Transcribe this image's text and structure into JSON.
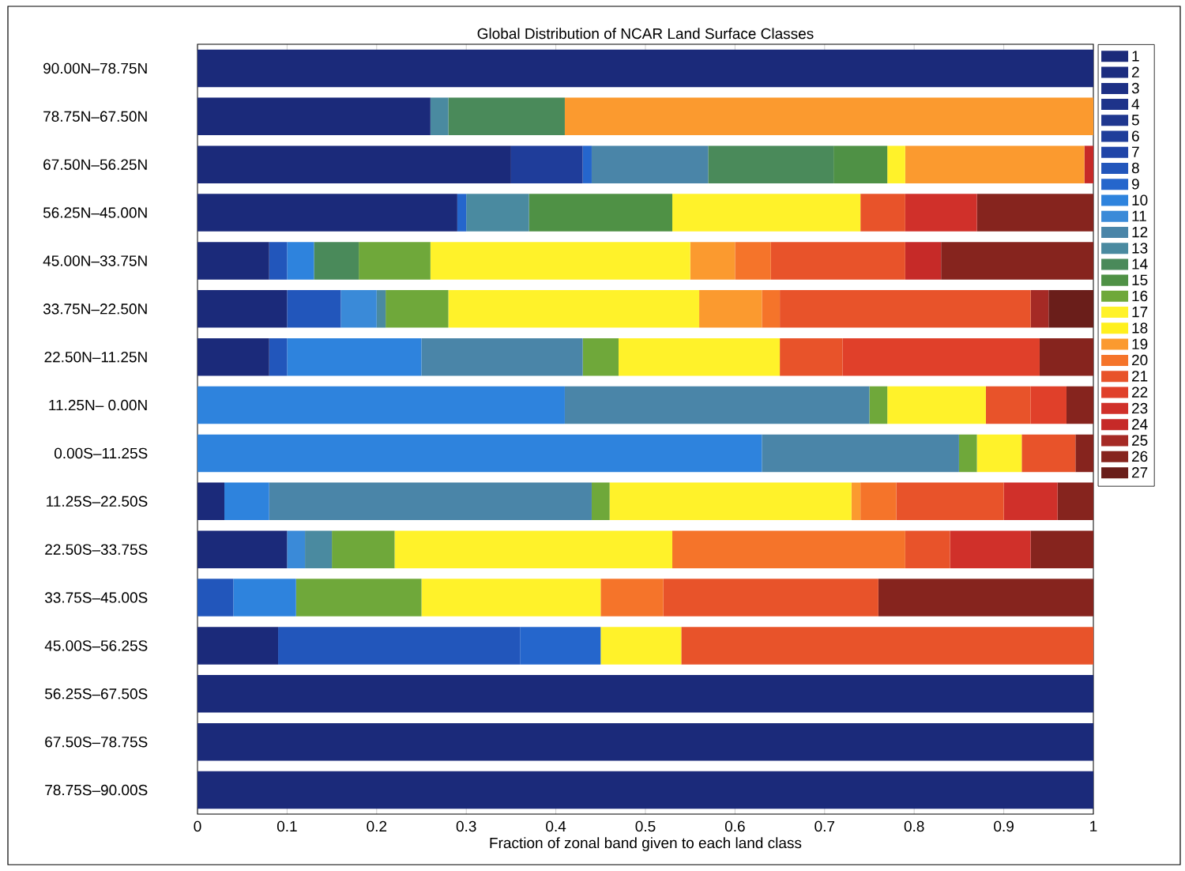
{
  "chart_data": {
    "type": "bar",
    "orientation": "horizontal",
    "stacked": true,
    "title": "Global Distribution of NCAR Land Surface Classes",
    "xlabel": "Fraction of zonal band given to each land class",
    "categories": [
      "90.00N–78.75N",
      "78.75N–67.50N",
      "67.50N–56.25N",
      "56.25N–45.00N",
      "45.00N–33.75N",
      "33.75N–22.50N",
      "22.50N–11.25N",
      "11.25N– 0.00N",
      "0.00S–11.25S",
      "11.25S–22.50S",
      "22.50S–33.75S",
      "33.75S–45.00S",
      "45.00S–56.25S",
      "56.25S–67.50S",
      "67.50S–78.75S",
      "78.75S–90.00S"
    ],
    "xlim": [
      0,
      1
    ],
    "xticks": [
      0,
      0.1,
      0.2,
      0.3,
      0.4,
      0.5,
      0.6,
      0.7,
      0.8,
      0.9,
      1
    ],
    "legend": "right",
    "grid": false,
    "series": [
      {
        "name": "1",
        "color": "#1b2a7a",
        "values": [
          1,
          0.26,
          0.35,
          0.29,
          0.08,
          0.1,
          0.08,
          null,
          null,
          0.03,
          0.1,
          null,
          0.09,
          1,
          1,
          1
        ]
      },
      {
        "name": "2",
        "color": "#1c2d80",
        "values": [
          null,
          null,
          null,
          null,
          null,
          null,
          null,
          null,
          null,
          null,
          null,
          null,
          null,
          null,
          null,
          null
        ]
      },
      {
        "name": "3",
        "color": "#1d3085",
        "values": [
          null,
          null,
          null,
          null,
          null,
          null,
          null,
          null,
          null,
          null,
          null,
          null,
          null,
          null,
          null,
          null
        ]
      },
      {
        "name": "4",
        "color": "#1e338a",
        "values": [
          null,
          null,
          null,
          null,
          null,
          null,
          null,
          null,
          null,
          null,
          null,
          null,
          null,
          null,
          null,
          null
        ]
      },
      {
        "name": "5",
        "color": "#1f378f",
        "values": [
          null,
          null,
          null,
          null,
          null,
          null,
          null,
          null,
          null,
          null,
          null,
          null,
          null,
          null,
          null,
          null
        ]
      },
      {
        "name": "6",
        "color": "#1f3d9a",
        "values": [
          null,
          null,
          0.08,
          null,
          null,
          null,
          null,
          null,
          null,
          null,
          null,
          null,
          null,
          null,
          null,
          null
        ]
      },
      {
        "name": "7",
        "color": "#2045a8",
        "values": [
          null,
          null,
          null,
          null,
          null,
          null,
          null,
          null,
          null,
          null,
          null,
          null,
          null,
          null,
          null,
          null
        ]
      },
      {
        "name": "8",
        "color": "#2256bb",
        "values": [
          null,
          null,
          null,
          null,
          0.02,
          0.06,
          0.02,
          null,
          null,
          null,
          null,
          0.04,
          0.27,
          null,
          null,
          null
        ]
      },
      {
        "name": "9",
        "color": "#2566cc",
        "values": [
          null,
          null,
          0.01,
          0.01,
          null,
          null,
          null,
          null,
          null,
          null,
          null,
          null,
          0.09,
          null,
          null,
          null
        ]
      },
      {
        "name": "10",
        "color": "#2e83dd",
        "values": [
          null,
          null,
          null,
          null,
          0.03,
          null,
          0.15,
          0.41,
          0.63,
          0.05,
          null,
          0.07,
          null,
          null,
          null,
          null
        ]
      },
      {
        "name": "11",
        "color": "#3a8ad8",
        "values": [
          null,
          null,
          null,
          null,
          null,
          0.04,
          null,
          null,
          null,
          null,
          0.02,
          null,
          null,
          null,
          null,
          null
        ]
      },
      {
        "name": "12",
        "color": "#4a85a8",
        "values": [
          null,
          null,
          0.13,
          null,
          null,
          null,
          0.18,
          0.34,
          0.22,
          0.36,
          null,
          null,
          null,
          null,
          null,
          null
        ]
      },
      {
        "name": "13",
        "color": "#4a8aa0",
        "values": [
          null,
          0.02,
          null,
          0.07,
          null,
          0.01,
          null,
          null,
          null,
          null,
          0.03,
          null,
          null,
          null,
          null,
          null
        ]
      },
      {
        "name": "14",
        "color": "#4a8a5a",
        "values": [
          null,
          0.13,
          0.14,
          null,
          0.05,
          null,
          null,
          null,
          null,
          null,
          null,
          null,
          null,
          null,
          null,
          null
        ]
      },
      {
        "name": "15",
        "color": "#4f9145",
        "values": [
          null,
          null,
          0.06,
          0.16,
          null,
          null,
          null,
          null,
          null,
          null,
          null,
          null,
          null,
          null,
          null,
          null
        ]
      },
      {
        "name": "16",
        "color": "#6fa83a",
        "values": [
          null,
          null,
          null,
          null,
          0.08,
          0.07,
          0.04,
          0.02,
          0.02,
          0.02,
          0.07,
          0.14,
          null,
          null,
          null,
          null
        ]
      },
      {
        "name": "17",
        "color": "#fff22a",
        "values": [
          null,
          null,
          0.02,
          0.21,
          0.29,
          0.28,
          0.18,
          0.11,
          0.05,
          0.27,
          0.31,
          0.2,
          0.09,
          null,
          null,
          null
        ]
      },
      {
        "name": "18",
        "color": "#fff01e",
        "values": [
          null,
          null,
          null,
          null,
          null,
          null,
          null,
          null,
          null,
          null,
          null,
          null,
          null,
          null,
          null,
          null
        ]
      },
      {
        "name": "19",
        "color": "#fb9a2f",
        "values": [
          null,
          0.59,
          0.2,
          null,
          0.05,
          0.07,
          null,
          null,
          null,
          0.01,
          null,
          null,
          null,
          null,
          null,
          null
        ]
      },
      {
        "name": "20",
        "color": "#f5742a",
        "values": [
          null,
          null,
          null,
          null,
          0.04,
          0.02,
          null,
          null,
          null,
          0.04,
          0.26,
          0.07,
          null,
          null,
          null,
          null
        ]
      },
      {
        "name": "21",
        "color": "#e8532a",
        "values": [
          null,
          null,
          null,
          0.05,
          0.15,
          0.28,
          0.07,
          0.05,
          0.06,
          0.12,
          0.05,
          0.24,
          0.46,
          null,
          null,
          null
        ]
      },
      {
        "name": "22",
        "color": "#e0402a",
        "values": [
          null,
          null,
          null,
          null,
          null,
          null,
          0.22,
          0.04,
          null,
          null,
          null,
          null,
          null,
          null,
          null,
          null
        ]
      },
      {
        "name": "23",
        "color": "#d0302a",
        "values": [
          null,
          null,
          null,
          0.08,
          null,
          null,
          null,
          null,
          null,
          0.06,
          0.09,
          null,
          null,
          null,
          null,
          null
        ]
      },
      {
        "name": "24",
        "color": "#c62a28",
        "values": [
          null,
          null,
          0.01,
          null,
          0.04,
          null,
          null,
          null,
          null,
          null,
          null,
          null,
          null,
          null,
          null,
          null
        ]
      },
      {
        "name": "25",
        "color": "#a52a25",
        "values": [
          null,
          null,
          null,
          null,
          null,
          0.02,
          null,
          null,
          null,
          null,
          null,
          null,
          null,
          null,
          null,
          null
        ]
      },
      {
        "name": "26",
        "color": "#86241e",
        "values": [
          null,
          null,
          null,
          0.13,
          0.17,
          null,
          0.06,
          0.03,
          0.02,
          0.04,
          0.07,
          0.24,
          null,
          null,
          null,
          null
        ]
      },
      {
        "name": "27",
        "color": "#6a1e1a",
        "values": [
          null,
          null,
          null,
          null,
          null,
          0.05,
          null,
          null,
          null,
          null,
          null,
          null,
          null,
          null,
          null,
          null
        ]
      }
    ]
  }
}
